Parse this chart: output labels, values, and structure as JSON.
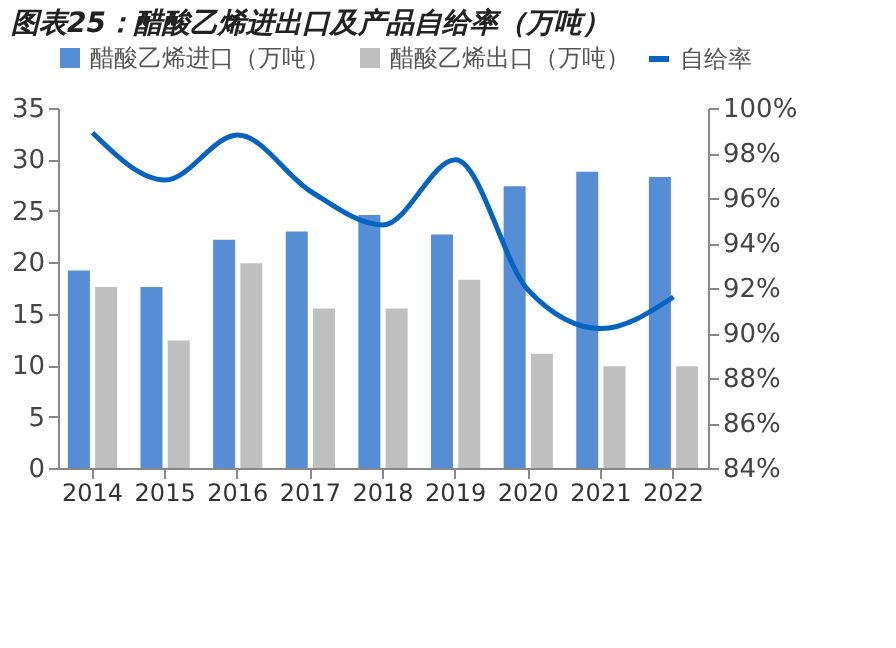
{
  "chart_data": {
    "type": "bar",
    "title": "图表25：醋酸乙烯进出口及产品自给率（万吨）",
    "categories": [
      "2014",
      "2015",
      "2016",
      "2017",
      "2018",
      "2019",
      "2020",
      "2021",
      "2022"
    ],
    "series": [
      {
        "name": "醋酸乙烯进口（万吨）",
        "color": "#558ed5",
        "values": [
          19.2,
          17.6,
          22.2,
          23.0,
          24.6,
          22.7,
          27.4,
          28.8,
          28.3
        ]
      },
      {
        "name": "醋酸乙烯出口（万吨）",
        "color": "#bfbfbf",
        "values": [
          17.6,
          12.4,
          19.9,
          15.5,
          15.5,
          18.3,
          11.1,
          9.9,
          9.9
        ]
      },
      {
        "name": "自给率",
        "color": "#0563c1",
        "type": "line",
        "axis": "y2",
        "values": [
          98.9,
          96.8,
          98.8,
          96.3,
          94.8,
          97.7,
          91.9,
          90.2,
          91.6
        ]
      }
    ],
    "ylim": [
      0,
      35
    ],
    "yticks": [
      0,
      5,
      10,
      15,
      20,
      25,
      30,
      35
    ],
    "y2lim": [
      84,
      100
    ],
    "y2ticks": [
      {
        "value": 84,
        "label": "84%"
      },
      {
        "value": 86,
        "label": "86%"
      },
      {
        "value": 88,
        "label": "88%"
      },
      {
        "value": 90,
        "label": "90%"
      },
      {
        "value": 92,
        "label": "92%"
      },
      {
        "value": 94,
        "label": "94%"
      },
      {
        "value": 96,
        "label": "96%"
      },
      {
        "value": 98,
        "label": "98%"
      },
      {
        "value": 100,
        "label": "100%"
      }
    ],
    "legend": "top",
    "grid": false
  }
}
